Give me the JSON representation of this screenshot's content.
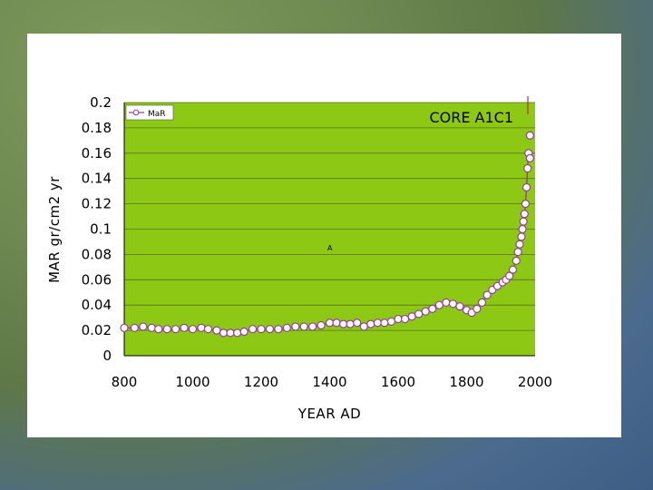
{
  "chart_data": {
    "type": "line",
    "title": "CORE A1C1",
    "xlabel": "YEAR AD",
    "ylabel": "MAR gr/cm2 yr",
    "xlim": [
      800,
      2000
    ],
    "ylim": [
      0,
      0.2
    ],
    "xticks": [
      "800",
      "1000",
      "1200",
      "1400",
      "1600",
      "1800",
      "2000"
    ],
    "yticks": [
      "0",
      "0.02",
      "0.04",
      "0.06",
      "0.08",
      "0.1",
      "0.12",
      "0.14",
      "0.16",
      "0.18",
      "0.2"
    ],
    "legend": "top-left",
    "grid": true,
    "plot_background": "#8cc814",
    "annotation": "A",
    "series": [
      {
        "name": "MaR",
        "color": "#9a3d9a",
        "marker_fill": "#ffffff",
        "x": [
          800,
          830,
          855,
          880,
          900,
          925,
          950,
          975,
          1000,
          1025,
          1045,
          1070,
          1090,
          1110,
          1130,
          1150,
          1175,
          1200,
          1225,
          1250,
          1275,
          1300,
          1325,
          1350,
          1375,
          1400,
          1420,
          1440,
          1460,
          1480,
          1500,
          1520,
          1540,
          1560,
          1580,
          1600,
          1620,
          1640,
          1660,
          1680,
          1700,
          1720,
          1740,
          1760,
          1780,
          1800,
          1815,
          1830,
          1845,
          1860,
          1875,
          1890,
          1905,
          1915,
          1925,
          1935,
          1945,
          1950,
          1955,
          1960,
          1963,
          1966,
          1969,
          1972,
          1975,
          1978,
          1981
        ],
        "y": [
          0.022,
          0.022,
          0.023,
          0.022,
          0.021,
          0.021,
          0.021,
          0.022,
          0.021,
          0.022,
          0.021,
          0.02,
          0.018,
          0.018,
          0.018,
          0.019,
          0.021,
          0.021,
          0.021,
          0.021,
          0.022,
          0.023,
          0.023,
          0.023,
          0.024,
          0.026,
          0.026,
          0.025,
          0.025,
          0.026,
          0.023,
          0.025,
          0.026,
          0.026,
          0.027,
          0.029,
          0.029,
          0.031,
          0.033,
          0.035,
          0.037,
          0.04,
          0.042,
          0.041,
          0.039,
          0.036,
          0.034,
          0.037,
          0.042,
          0.048,
          0.052,
          0.055,
          0.058,
          0.06,
          0.063,
          0.068,
          0.075,
          0.082,
          0.088,
          0.094,
          0.1,
          0.106,
          0.112,
          0.12,
          0.133,
          0.148,
          0.16
        ]
      }
    ],
    "extra_points": [
      {
        "x": 1985,
        "y": 0.174
      },
      {
        "x": 1985,
        "y": 0.156
      }
    ]
  }
}
